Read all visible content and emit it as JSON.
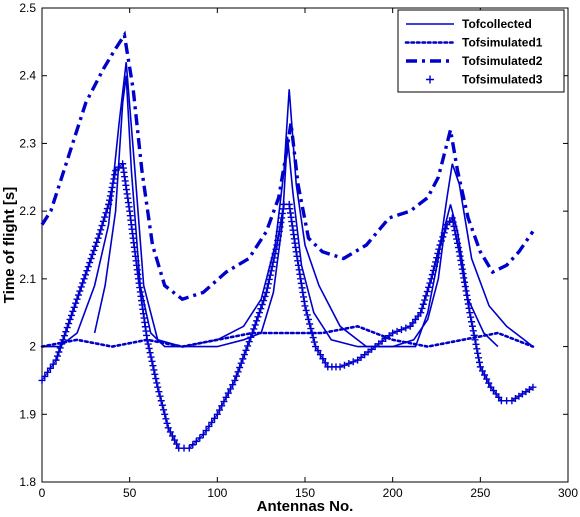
{
  "chart_data": {
    "type": "line",
    "xlabel": "Antennas No.",
    "ylabel": "Time of flight [s]",
    "xlim": [
      0,
      300
    ],
    "ylim": [
      1.8,
      2.5
    ],
    "xticks": [
      "0",
      "50",
      "100",
      "150",
      "200",
      "250",
      "300"
    ],
    "yticks": [
      "1.8",
      "1.9",
      "2",
      "2.1",
      "2.2",
      "2.3",
      "2.4",
      "2.5"
    ],
    "grid": false,
    "legend_position": "top-right",
    "colors": {
      "series": "#0000cc",
      "axis": "#000000"
    },
    "series": [
      {
        "name": "Tofcollected",
        "style": "solid",
        "outer": [
          [
            0,
            2.0
          ],
          [
            10,
            2.0
          ],
          [
            20,
            2.02
          ],
          [
            30,
            2.09
          ],
          [
            38,
            2.18
          ],
          [
            44,
            2.33
          ],
          [
            48,
            2.42
          ],
          [
            53,
            2.26
          ],
          [
            58,
            2.09
          ],
          [
            66,
            2.01
          ],
          [
            80,
            2.0
          ],
          [
            100,
            2.01
          ],
          [
            115,
            2.03
          ],
          [
            125,
            2.07
          ],
          [
            133,
            2.15
          ],
          [
            138,
            2.26
          ],
          [
            141,
            2.38
          ],
          [
            145,
            2.24
          ],
          [
            150,
            2.15
          ],
          [
            158,
            2.09
          ],
          [
            170,
            2.03
          ],
          [
            185,
            2.0
          ],
          [
            200,
            2.0
          ],
          [
            213,
            2.0
          ],
          [
            220,
            2.05
          ],
          [
            226,
            2.13
          ],
          [
            231,
            2.22
          ],
          [
            234,
            2.27
          ],
          [
            238,
            2.24
          ],
          [
            245,
            2.13
          ],
          [
            255,
            2.06
          ],
          [
            265,
            2.03
          ],
          [
            275,
            2.01
          ],
          [
            280,
            2.0
          ]
        ],
        "inner": [
          [
            30,
            2.02
          ],
          [
            36,
            2.09
          ],
          [
            42,
            2.2
          ],
          [
            46,
            2.36
          ],
          [
            48,
            2.4
          ],
          [
            51,
            2.26
          ],
          [
            56,
            2.09
          ],
          [
            62,
            2.02
          ],
          [
            70,
            2.0
          ],
          [
            85,
            2.0
          ],
          [
            100,
            2.0
          ],
          [
            115,
            2.01
          ],
          [
            125,
            2.02
          ],
          [
            132,
            2.08
          ],
          [
            137,
            2.18
          ],
          [
            140,
            2.31
          ],
          [
            143,
            2.23
          ],
          [
            148,
            2.12
          ],
          [
            155,
            2.05
          ],
          [
            165,
            2.01
          ],
          [
            180,
            2.0
          ],
          [
            200,
            2.0
          ],
          [
            212,
            2.01
          ],
          [
            220,
            2.04
          ],
          [
            226,
            2.1
          ],
          [
            230,
            2.18
          ],
          [
            233,
            2.21
          ],
          [
            237,
            2.17
          ],
          [
            243,
            2.07
          ],
          [
            252,
            2.02
          ],
          [
            260,
            2.0
          ]
        ]
      },
      {
        "name": "Tofsimulated1",
        "style": "dotted",
        "points": [
          [
            0,
            2.0
          ],
          [
            20,
            2.01
          ],
          [
            40,
            2.0
          ],
          [
            60,
            2.01
          ],
          [
            80,
            2.0
          ],
          [
            100,
            2.01
          ],
          [
            120,
            2.02
          ],
          [
            140,
            2.02
          ],
          [
            160,
            2.02
          ],
          [
            180,
            2.03
          ],
          [
            200,
            2.01
          ],
          [
            220,
            2.0
          ],
          [
            240,
            2.01
          ],
          [
            260,
            2.02
          ],
          [
            280,
            2.0
          ]
        ]
      },
      {
        "name": "Tofsimulated2",
        "style": "dashdot",
        "points": [
          [
            0,
            2.18
          ],
          [
            5,
            2.2
          ],
          [
            15,
            2.28
          ],
          [
            25,
            2.36
          ],
          [
            35,
            2.41
          ],
          [
            42,
            2.44
          ],
          [
            47,
            2.46
          ],
          [
            52,
            2.38
          ],
          [
            57,
            2.26
          ],
          [
            63,
            2.15
          ],
          [
            70,
            2.09
          ],
          [
            80,
            2.07
          ],
          [
            92,
            2.08
          ],
          [
            105,
            2.11
          ],
          [
            118,
            2.13
          ],
          [
            128,
            2.17
          ],
          [
            135,
            2.22
          ],
          [
            139,
            2.28
          ],
          [
            142,
            2.33
          ],
          [
            146,
            2.24
          ],
          [
            152,
            2.16
          ],
          [
            160,
            2.14
          ],
          [
            172,
            2.13
          ],
          [
            185,
            2.15
          ],
          [
            198,
            2.19
          ],
          [
            210,
            2.2
          ],
          [
            220,
            2.22
          ],
          [
            226,
            2.25
          ],
          [
            230,
            2.29
          ],
          [
            233,
            2.32
          ],
          [
            237,
            2.26
          ],
          [
            243,
            2.19
          ],
          [
            250,
            2.14
          ],
          [
            257,
            2.11
          ],
          [
            265,
            2.12
          ],
          [
            272,
            2.14
          ],
          [
            280,
            2.17
          ]
        ]
      },
      {
        "name": "Tofsimulated3",
        "style": "plus-markers",
        "points": [
          [
            0,
            1.95
          ],
          [
            8,
            1.98
          ],
          [
            16,
            2.04
          ],
          [
            24,
            2.1
          ],
          [
            32,
            2.16
          ],
          [
            38,
            2.21
          ],
          [
            42,
            2.26
          ],
          [
            46,
            2.27
          ],
          [
            50,
            2.2
          ],
          [
            55,
            2.1
          ],
          [
            60,
            2.01
          ],
          [
            66,
            1.94
          ],
          [
            72,
            1.88
          ],
          [
            78,
            1.85
          ],
          [
            84,
            1.85
          ],
          [
            92,
            1.87
          ],
          [
            100,
            1.9
          ],
          [
            110,
            1.95
          ],
          [
            120,
            2.02
          ],
          [
            128,
            2.08
          ],
          [
            134,
            2.15
          ],
          [
            138,
            2.21
          ],
          [
            141,
            2.21
          ],
          [
            145,
            2.14
          ],
          [
            150,
            2.06
          ],
          [
            156,
            2.0
          ],
          [
            163,
            1.97
          ],
          [
            170,
            1.97
          ],
          [
            180,
            1.98
          ],
          [
            190,
            2.0
          ],
          [
            200,
            2.02
          ],
          [
            210,
            2.03
          ],
          [
            216,
            2.05
          ],
          [
            222,
            2.1
          ],
          [
            227,
            2.15
          ],
          [
            231,
            2.18
          ],
          [
            234,
            2.19
          ],
          [
            238,
            2.14
          ],
          [
            244,
            2.05
          ],
          [
            250,
            1.97
          ],
          [
            256,
            1.94
          ],
          [
            262,
            1.92
          ],
          [
            268,
            1.92
          ],
          [
            274,
            1.93
          ],
          [
            280,
            1.94
          ]
        ]
      }
    ]
  }
}
